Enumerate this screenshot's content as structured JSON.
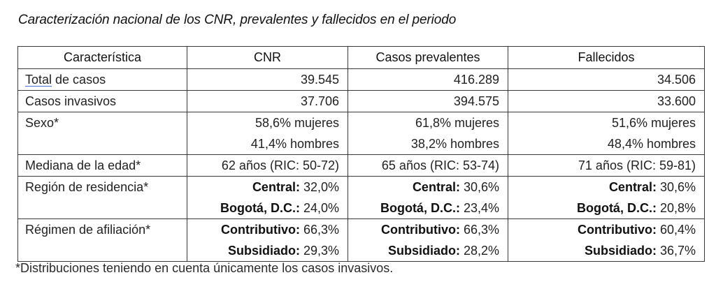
{
  "title": "Caracterización nacional de los CNR, prevalentes y fallecidos en el periodo",
  "table": {
    "headers": [
      "Característica",
      "CNR",
      "Casos prevalentes",
      "Fallecidos"
    ],
    "rows": [
      {
        "label": "Total de casos",
        "label_underlined_part": "Total",
        "label_rest": " de casos",
        "values": [
          [
            {
              "bold": "",
              "text": "39.545"
            }
          ],
          [
            {
              "bold": "",
              "text": "416.289"
            }
          ],
          [
            {
              "bold": "",
              "text": "34.506"
            }
          ]
        ]
      },
      {
        "label": "Casos invasivos",
        "values": [
          [
            {
              "bold": "",
              "text": "37.706"
            }
          ],
          [
            {
              "bold": "",
              "text": "394.575"
            }
          ],
          [
            {
              "bold": "",
              "text": "33.600"
            }
          ]
        ]
      },
      {
        "label": "Sexo*",
        "values": [
          [
            {
              "bold": "",
              "text": "58,6% mujeres"
            },
            {
              "bold": "",
              "text": "41,4% hombres"
            }
          ],
          [
            {
              "bold": "",
              "text": "61,8% mujeres"
            },
            {
              "bold": "",
              "text": "38,2% hombres"
            }
          ],
          [
            {
              "bold": "",
              "text": "51,6% mujeres"
            },
            {
              "bold": "",
              "text": "48,4% hombres"
            }
          ]
        ]
      },
      {
        "label": "Mediana de la edad*",
        "values": [
          [
            {
              "bold": "",
              "text": "62 años (RIC: 50-72)"
            }
          ],
          [
            {
              "bold": "",
              "text": "65 años (RIC: 53-74)"
            }
          ],
          [
            {
              "bold": "",
              "text": "71 años (RIC: 59-81)"
            }
          ]
        ]
      },
      {
        "label": "Región de residencia*",
        "values": [
          [
            {
              "bold": "Central:",
              "text": " 32,0%"
            },
            {
              "bold": "Bogotá, D.C.:",
              "text": " 24,0%"
            }
          ],
          [
            {
              "bold": "Central:",
              "text": " 30,6%"
            },
            {
              "bold": "Bogotá, D.C.:",
              "text": " 23,4%"
            }
          ],
          [
            {
              "bold": "Central:",
              "text": " 30,6%"
            },
            {
              "bold": "Bogotá, D.C.:",
              "text": " 20,8%"
            }
          ]
        ]
      },
      {
        "label": "Régimen de afiliación*",
        "values": [
          [
            {
              "bold": "Contributivo:",
              "text": " 66,3%"
            },
            {
              "bold": "Subsidiado:",
              "text": " 29,3%"
            }
          ],
          [
            {
              "bold": "Contributivo:",
              "text": " 66,3%"
            },
            {
              "bold": "Subsidiado:",
              "text": " 28,2%"
            }
          ],
          [
            {
              "bold": "Contributivo:",
              "text": " 60,4%"
            },
            {
              "bold": "Subsidiado:",
              "text": " 36,7%"
            }
          ]
        ]
      }
    ]
  },
  "footnote": "*Distribuciones teniendo en cuenta únicamente los casos invasivos.",
  "colors": {
    "text": "#222222",
    "border": "#3a3a3a",
    "spellcheck_underline": "#4a6fd1"
  }
}
